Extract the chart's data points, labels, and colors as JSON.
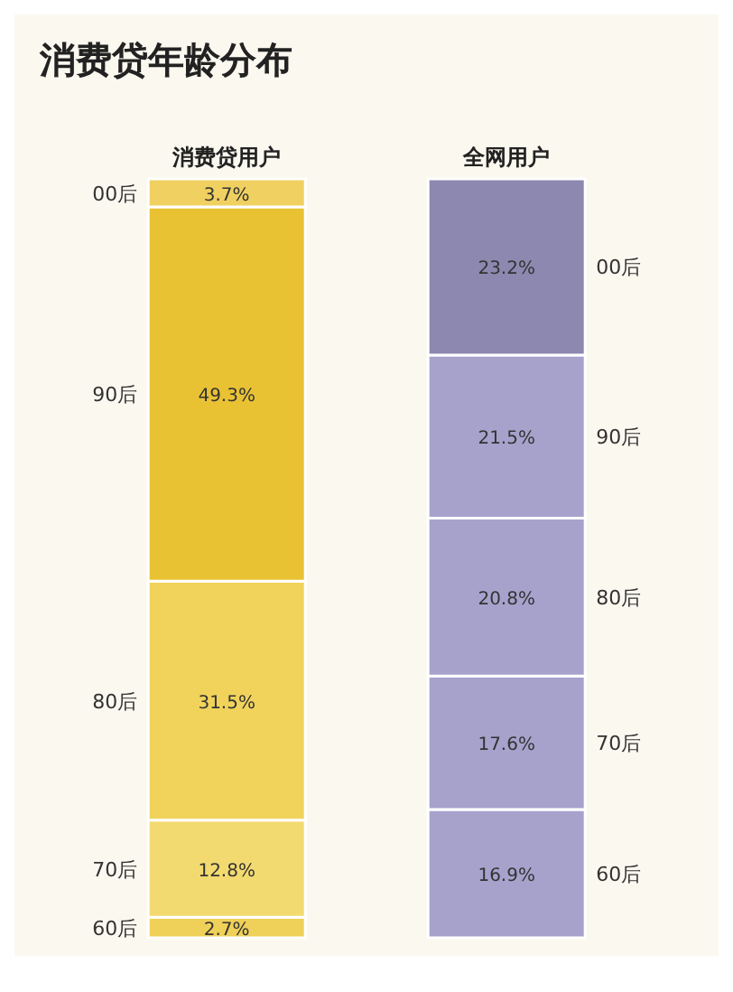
{
  "chart_data": {
    "type": "bar",
    "title": "消费贷年龄分布",
    "stacked": true,
    "categories": [
      "消费贷用户",
      "全网用户"
    ],
    "series": [
      {
        "name": "60后",
        "colors": [
          "#efd058",
          "#a6a2cc"
        ],
        "values": [
          2.7,
          16.9
        ],
        "value_labels": [
          "2.7%",
          "16.9%"
        ]
      },
      {
        "name": "70后",
        "colors": [
          "#f3da70",
          "#a6a2cc"
        ],
        "values": [
          12.8,
          17.6
        ],
        "value_labels": [
          "12.8%",
          "17.6%"
        ]
      },
      {
        "name": "80后",
        "colors": [
          "#f1d35c",
          "#a6a2cc"
        ],
        "values": [
          31.5,
          20.8
        ],
        "value_labels": [
          "31.5%",
          "20.8%"
        ]
      },
      {
        "name": "90后",
        "colors": [
          "#e9c234",
          "#a6a2cc"
        ],
        "values": [
          49.3,
          21.5
        ],
        "value_labels": [
          "49.3%",
          "21.5%"
        ]
      },
      {
        "name": "00后",
        "colors": [
          "#f0d060",
          "#8c88b0"
        ],
        "values": [
          3.7,
          23.2
        ],
        "value_labels": [
          "3.7%",
          "23.2%"
        ]
      }
    ]
  }
}
